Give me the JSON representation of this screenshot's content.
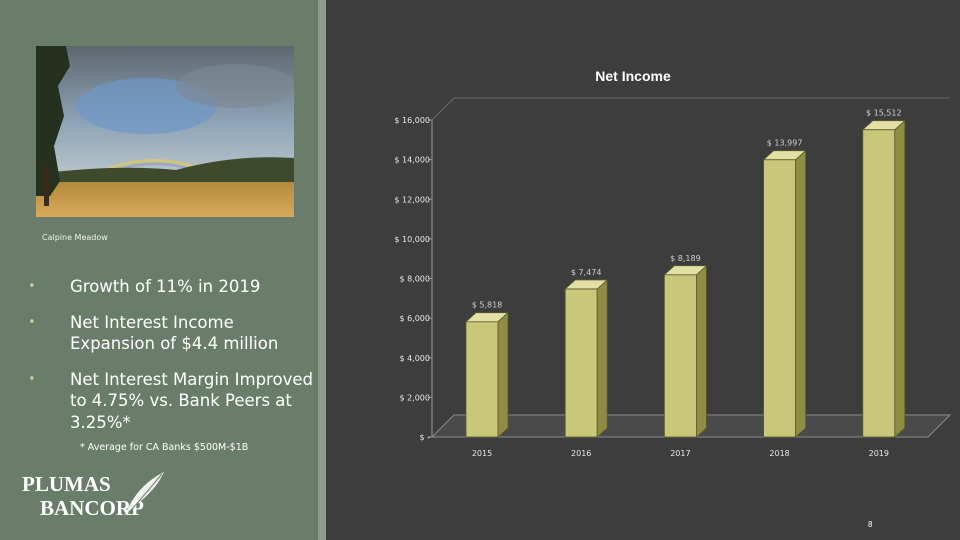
{
  "sidebar": {
    "photo_caption": "Calpine Meadow",
    "bullets": [
      "Growth of 11% in 2019",
      "Net Interest Income Expansion of $4.4 million",
      "Net Interest Margin Improved to 4.75% vs. Bank Peers at 3.25%*"
    ],
    "footnote": "* Average for CA Banks $500M-$1B",
    "logo_line1": "PLUMAS",
    "logo_line2": "BANCORP"
  },
  "chart_data": {
    "type": "bar",
    "title": "Net Income",
    "categories": [
      "2015",
      "2016",
      "2017",
      "2018",
      "2019"
    ],
    "values": [
      5818,
      7474,
      8189,
      13997,
      15512
    ],
    "value_labels": [
      "$ 5,818",
      "$ 7,474",
      "$ 8,189",
      "$ 13,997",
      "$ 15,512"
    ],
    "ylim": [
      0,
      16000
    ],
    "yticks": [
      0,
      2000,
      4000,
      6000,
      8000,
      10000,
      12000,
      14000,
      16000
    ],
    "ytick_labels": [
      "$ -",
      "$ 2,000",
      "$ 4,000",
      "$ 6,000",
      "$ 8,000",
      "$ 10,000",
      "$ 12,000",
      "$ 14,000",
      "$ 16,000"
    ],
    "grid": false,
    "bar_color": "#c9c77a"
  },
  "page_number": "8"
}
